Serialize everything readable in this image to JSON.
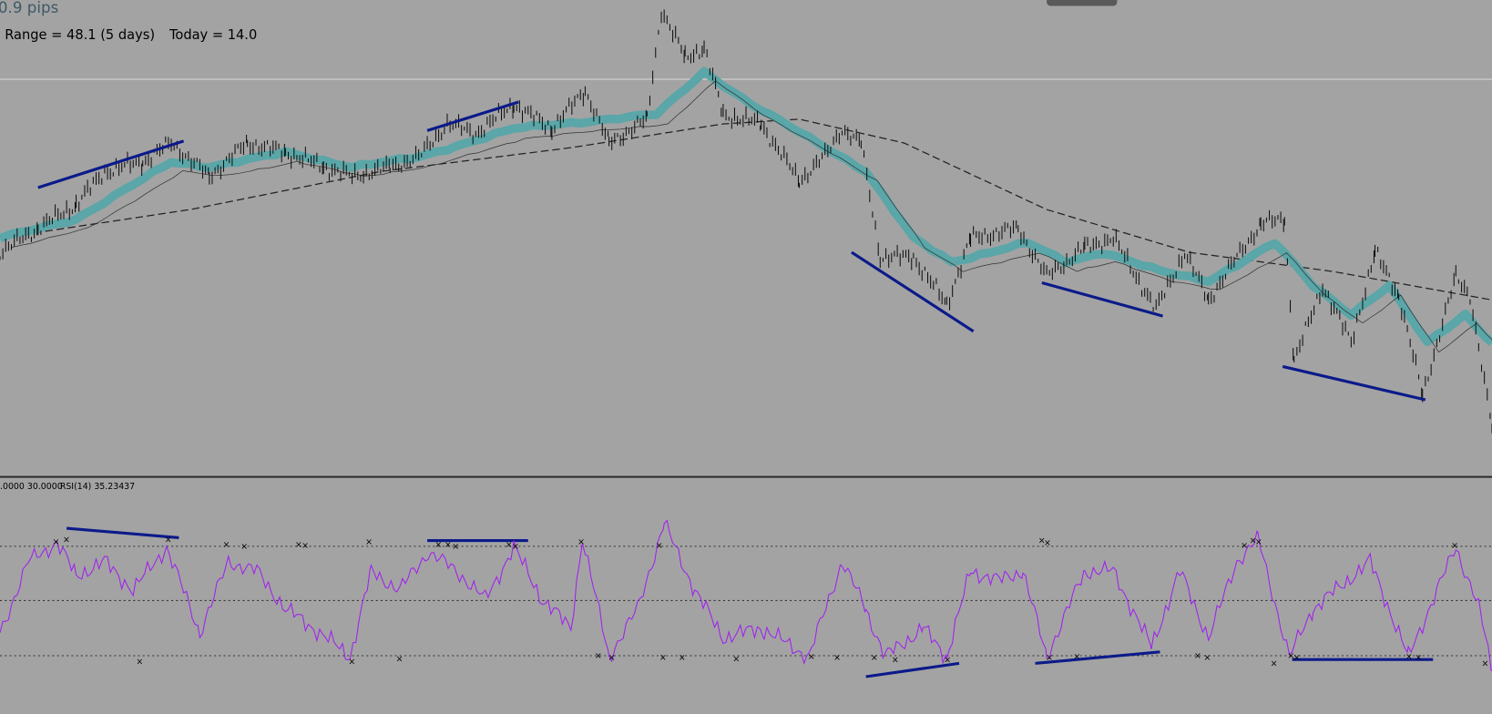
{
  "header": {
    "spread": "0.9 pips",
    "range": "Range = 48.1 (5 days)",
    "today": "Today = 14.0"
  },
  "rsi_panel": {
    "levels": ".0000 30.0000",
    "label": "RSI(14) 35.23437"
  }
}
